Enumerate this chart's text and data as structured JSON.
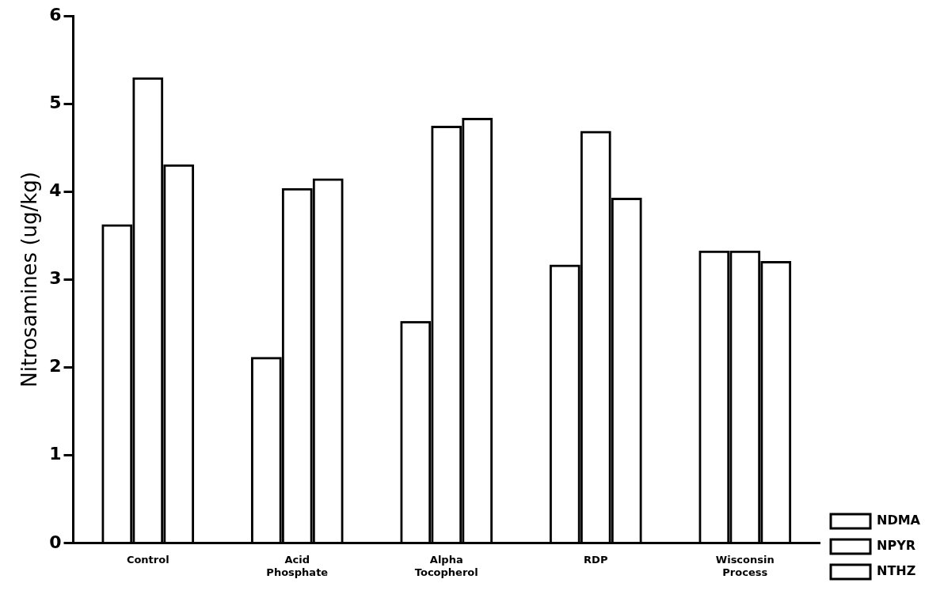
{
  "chart_data": {
    "type": "bar",
    "ylabel": "Nitrosamines (ug/kg)",
    "categories": [
      "Control",
      "Acid Phosphate",
      "Alpha Tocopherol",
      "RDP",
      "Wisconsin Process"
    ],
    "series": [
      {
        "name": "NDMA",
        "color": "#000000",
        "values": [
          3.63,
          2.12,
          2.53,
          3.17,
          3.33
        ]
      },
      {
        "name": "NPYR",
        "color": "#000000",
        "values": [
          5.3,
          4.04,
          4.75,
          4.69,
          3.33
        ]
      },
      {
        "name": "NTHZ",
        "color": "#000000",
        "values": [
          4.31,
          4.15,
          4.84,
          3.93,
          3.21
        ]
      }
    ],
    "ylim": [
      0,
      6
    ],
    "yticks": [
      0,
      1,
      2,
      3,
      4,
      5,
      6
    ],
    "grid": false,
    "legend": "bottom right"
  }
}
